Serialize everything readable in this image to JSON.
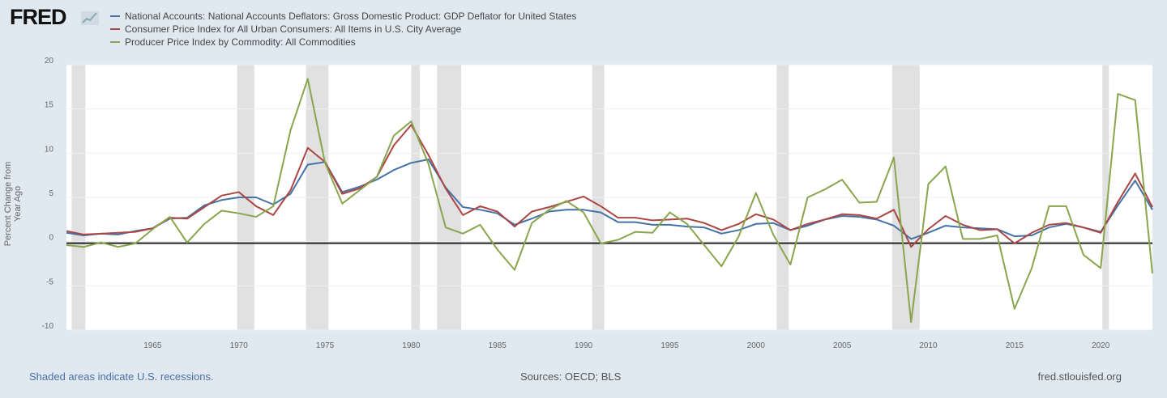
{
  "brand": {
    "logo_text": "FRED"
  },
  "footer": {
    "recession_note": "Shaded areas indicate U.S. recessions.",
    "sources": "Sources: OECD; BLS",
    "site": "fred.stlouisfed.org"
  },
  "chart_data": {
    "type": "line",
    "title": "",
    "xlabel": "",
    "ylabel": "Percent Change from Year Ago",
    "xlim": [
      1960,
      2023
    ],
    "ylim": [
      -10,
      20
    ],
    "yticks": [
      "20",
      "15",
      "10",
      "5",
      "0",
      "-5",
      "-10"
    ],
    "xticks": [
      "1965",
      "1970",
      "1975",
      "1980",
      "1985",
      "1990",
      "1995",
      "2000",
      "2005",
      "2010",
      "2015",
      "2020"
    ],
    "grid": true,
    "legend_position": "top-left",
    "recession_shading": [
      [
        1960.3,
        1961.1
      ],
      [
        1969.9,
        1970.9
      ],
      [
        1973.9,
        1975.2
      ],
      [
        1980.0,
        1980.5
      ],
      [
        1981.5,
        1982.9
      ],
      [
        1990.5,
        1991.2
      ],
      [
        2001.2,
        2001.9
      ],
      [
        2007.9,
        2009.5
      ],
      [
        2020.1,
        2020.3
      ]
    ],
    "x": [
      1960,
      1961,
      1962,
      1963,
      1964,
      1965,
      1966,
      1967,
      1968,
      1969,
      1970,
      1971,
      1972,
      1973,
      1974,
      1975,
      1976,
      1977,
      1978,
      1979,
      1980,
      1981,
      1982,
      1983,
      1984,
      1985,
      1986,
      1987,
      1988,
      1989,
      1990,
      1991,
      1992,
      1993,
      1994,
      1995,
      1996,
      1997,
      1998,
      1999,
      2000,
      2001,
      2002,
      2003,
      2004,
      2005,
      2006,
      2007,
      2008,
      2009,
      2010,
      2011,
      2012,
      2013,
      2014,
      2015,
      2016,
      2017,
      2018,
      2019,
      2020,
      2021,
      2022,
      2023
    ],
    "series": [
      {
        "name": "National Accounts: National Accounts Deflators: Gross Domestic Product: GDP Deflator for United States",
        "color": "#4572a7",
        "values": [
          1.0,
          0.7,
          0.9,
          0.8,
          1.2,
          1.5,
          2.6,
          2.7,
          4.1,
          4.7,
          5.0,
          5.0,
          4.2,
          5.4,
          8.7,
          9.0,
          5.6,
          6.2,
          7.0,
          8.1,
          8.9,
          9.3,
          6.1,
          3.9,
          3.6,
          3.2,
          1.9,
          2.6,
          3.4,
          3.6,
          3.6,
          3.3,
          2.2,
          2.2,
          1.9,
          1.9,
          1.7,
          1.6,
          0.9,
          1.3,
          2.0,
          2.1,
          1.3,
          1.8,
          2.5,
          2.9,
          2.8,
          2.5,
          1.8,
          0.3,
          1.0,
          1.8,
          1.6,
          1.5,
          1.4,
          0.6,
          0.7,
          1.6,
          2.0,
          1.6,
          1.1,
          4.1,
          6.9,
          3.6
        ]
      },
      {
        "name": "Consumer Price Index for All Urban Consumers: All Items in U.S. City Average",
        "color": "#aa4643",
        "values": [
          1.2,
          0.8,
          0.9,
          1.0,
          1.1,
          1.5,
          2.7,
          2.6,
          3.9,
          5.2,
          5.6,
          4.0,
          3.0,
          5.8,
          10.6,
          9.0,
          5.4,
          6.0,
          7.3,
          10.9,
          13.2,
          9.8,
          6.0,
          3.0,
          4.0,
          3.4,
          1.7,
          3.4,
          3.9,
          4.5,
          5.1,
          4.0,
          2.7,
          2.7,
          2.4,
          2.5,
          2.6,
          2.1,
          1.3,
          2.0,
          3.1,
          2.5,
          1.3,
          2.0,
          2.5,
          3.1,
          3.0,
          2.6,
          3.6,
          -0.6,
          1.4,
          2.9,
          1.9,
          1.3,
          1.4,
          -0.2,
          1.0,
          1.9,
          2.1,
          1.6,
          1.0,
          4.5,
          7.7,
          3.9
        ]
      },
      {
        "name": "Producer Price Index by Commodity: All Commodities",
        "color": "#89a54e",
        "values": [
          -0.4,
          -0.6,
          -0.1,
          -0.6,
          -0.2,
          1.4,
          2.8,
          -0.1,
          2.0,
          3.5,
          3.2,
          2.8,
          4.0,
          12.6,
          18.4,
          8.9,
          4.3,
          5.8,
          7.3,
          12.0,
          13.6,
          8.8,
          1.6,
          0.9,
          1.9,
          -0.9,
          -3.2,
          2.1,
          3.6,
          4.6,
          3.3,
          -0.2,
          0.2,
          1.1,
          1.0,
          3.3,
          2.0,
          -0.4,
          -2.8,
          0.6,
          5.5,
          0.8,
          -2.6,
          5.0,
          5.9,
          7.0,
          4.4,
          4.5,
          9.5,
          -9.1,
          6.5,
          8.5,
          0.3,
          0.3,
          0.7,
          -7.6,
          -3.0,
          4.0,
          4.0,
          -1.5,
          -3.0,
          16.7,
          16.0,
          -3.6
        ]
      }
    ]
  }
}
